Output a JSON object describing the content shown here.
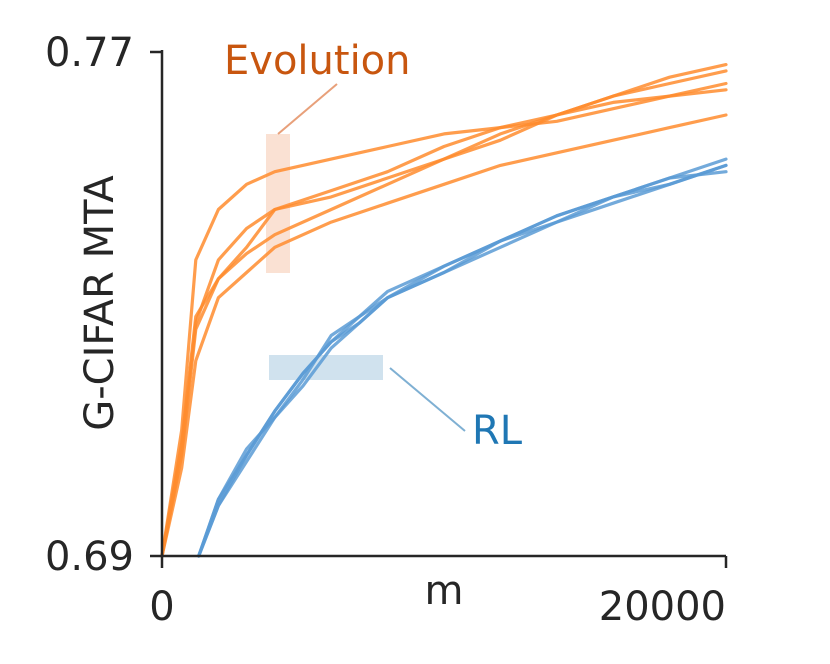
{
  "chart_data": {
    "type": "line",
    "xlabel": "m",
    "ylabel": "G-CIFAR MTA",
    "xlim": [
      0,
      20000
    ],
    "ylim": [
      0.69,
      0.77
    ],
    "xticks": [
      "0",
      "20000"
    ],
    "yticks": [
      "0.77",
      "0.69"
    ],
    "grid": false,
    "annotations": [
      {
        "text": "Evolution",
        "color": "#c8560f"
      },
      {
        "text": "RL",
        "color": "#1f77b4"
      }
    ],
    "series": [
      {
        "group": "Evolution",
        "color": "#ff8c2e",
        "x": [
          0,
          700,
          1200,
          2000,
          3000,
          4000,
          6000,
          8000,
          10000,
          12000,
          14000,
          16000,
          18000,
          20000
        ],
        "y": [
          0.69,
          0.71,
          0.737,
          0.745,
          0.749,
          0.751,
          0.753,
          0.755,
          0.757,
          0.758,
          0.759,
          0.761,
          0.763,
          0.765
        ]
      },
      {
        "group": "Evolution",
        "color": "#ff8c2e",
        "x": [
          0,
          700,
          1200,
          2000,
          3000,
          4000,
          6000,
          8000,
          10000,
          12000,
          14000,
          16000,
          18000,
          20000
        ],
        "y": [
          0.69,
          0.708,
          0.728,
          0.734,
          0.738,
          0.741,
          0.745,
          0.749,
          0.753,
          0.757,
          0.76,
          0.763,
          0.765,
          0.767
        ]
      },
      {
        "group": "Evolution",
        "color": "#ff8c2e",
        "x": [
          0,
          700,
          1200,
          2000,
          3000,
          4000,
          6000,
          8000,
          10000,
          12000,
          14000,
          16000,
          18000,
          20000
        ],
        "y": [
          0.69,
          0.706,
          0.726,
          0.734,
          0.739,
          0.745,
          0.748,
          0.751,
          0.755,
          0.758,
          0.76,
          0.762,
          0.763,
          0.764
        ]
      },
      {
        "group": "Evolution",
        "color": "#ff8c2e",
        "x": [
          0,
          700,
          1200,
          2000,
          3000,
          4000,
          6000,
          8000,
          10000,
          12000,
          14000,
          16000,
          18000,
          20000
        ],
        "y": [
          0.69,
          0.707,
          0.727,
          0.737,
          0.742,
          0.745,
          0.747,
          0.75,
          0.753,
          0.756,
          0.76,
          0.763,
          0.766,
          0.768
        ]
      },
      {
        "group": "Evolution",
        "color": "#ff8c2e",
        "x": [
          0,
          700,
          1200,
          2000,
          3000,
          4000,
          6000,
          8000,
          10000,
          12000,
          14000,
          16000,
          18000,
          20000
        ],
        "y": [
          0.69,
          0.704,
          0.721,
          0.731,
          0.735,
          0.739,
          0.743,
          0.746,
          0.749,
          0.752,
          0.754,
          0.756,
          0.758,
          0.76
        ]
      },
      {
        "group": "RL",
        "color": "#5b9bd5",
        "x": [
          1300,
          2000,
          3000,
          4000,
          5000,
          6000,
          7000,
          8000,
          10000,
          12000,
          14000,
          16000,
          18000,
          20000
        ],
        "y": [
          0.69,
          0.699,
          0.706,
          0.713,
          0.719,
          0.724,
          0.727,
          0.731,
          0.735,
          0.74,
          0.743,
          0.746,
          0.749,
          0.752
        ]
      },
      {
        "group": "RL",
        "color": "#5b9bd5",
        "x": [
          1300,
          2000,
          3000,
          4000,
          5000,
          6000,
          7000,
          8000,
          10000,
          12000,
          14000,
          16000,
          18000,
          20000
        ],
        "y": [
          0.69,
          0.698,
          0.705,
          0.712,
          0.718,
          0.725,
          0.728,
          0.732,
          0.736,
          0.74,
          0.744,
          0.747,
          0.75,
          0.753
        ]
      },
      {
        "group": "RL",
        "color": "#5b9bd5",
        "x": [
          1300,
          2000,
          3000,
          4000,
          5000,
          6000,
          7000,
          8000,
          10000,
          12000,
          14000,
          16000,
          18000,
          20000
        ],
        "y": [
          0.69,
          0.699,
          0.707,
          0.712,
          0.717,
          0.723,
          0.727,
          0.731,
          0.735,
          0.739,
          0.743,
          0.747,
          0.75,
          0.751
        ]
      },
      {
        "group": "RL",
        "color": "#5b9bd5",
        "x": [
          1300,
          2000,
          3000,
          4000,
          5000,
          6000,
          7000,
          8000,
          10000,
          12000,
          14000,
          16000,
          18000,
          20000
        ],
        "y": [
          0.69,
          0.698,
          0.706,
          0.713,
          0.719,
          0.724,
          0.728,
          0.731,
          0.736,
          0.74,
          0.744,
          0.747,
          0.749,
          0.752
        ]
      }
    ]
  }
}
